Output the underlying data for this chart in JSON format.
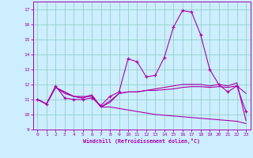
{
  "xlabel": "Windchill (Refroidissement éolien,°C)",
  "bg_color": "#cceeff",
  "line_color": "#aa00aa",
  "grid_color": "#88ccbb",
  "ylim": [
    9,
    17.5
  ],
  "xlim": [
    -0.5,
    23.5
  ],
  "yticks": [
    9,
    10,
    11,
    12,
    13,
    14,
    15,
    16,
    17
  ],
  "xticks": [
    0,
    1,
    2,
    3,
    4,
    5,
    6,
    7,
    8,
    9,
    10,
    11,
    12,
    13,
    14,
    15,
    16,
    17,
    18,
    19,
    20,
    21,
    22,
    23
  ],
  "series1_marked": [
    11.0,
    10.7,
    11.9,
    11.1,
    11.0,
    11.0,
    11.1,
    10.6,
    11.2,
    11.5,
    13.7,
    13.5,
    12.5,
    12.6,
    13.8,
    15.8,
    16.9,
    16.8,
    15.3,
    13.0,
    12.0,
    11.5,
    11.9,
    10.2
  ],
  "series2": [
    11.0,
    10.7,
    11.8,
    11.5,
    11.2,
    11.1,
    11.3,
    10.5,
    10.8,
    11.4,
    11.5,
    11.5,
    11.6,
    11.7,
    11.8,
    11.9,
    12.0,
    12.0,
    12.0,
    11.9,
    12.0,
    11.9,
    12.1,
    9.6
  ],
  "series3": [
    11.0,
    10.7,
    11.8,
    11.4,
    11.2,
    11.2,
    11.2,
    10.5,
    10.5,
    10.4,
    10.3,
    10.2,
    10.1,
    10.0,
    9.95,
    9.9,
    9.85,
    9.8,
    9.75,
    9.7,
    9.65,
    9.6,
    9.55,
    9.4
  ],
  "series4": [
    11.0,
    10.7,
    11.8,
    11.5,
    11.2,
    11.1,
    11.3,
    10.5,
    10.9,
    11.4,
    11.5,
    11.5,
    11.6,
    11.6,
    11.65,
    11.7,
    11.8,
    11.85,
    11.85,
    11.8,
    11.85,
    11.8,
    11.9,
    11.4
  ]
}
